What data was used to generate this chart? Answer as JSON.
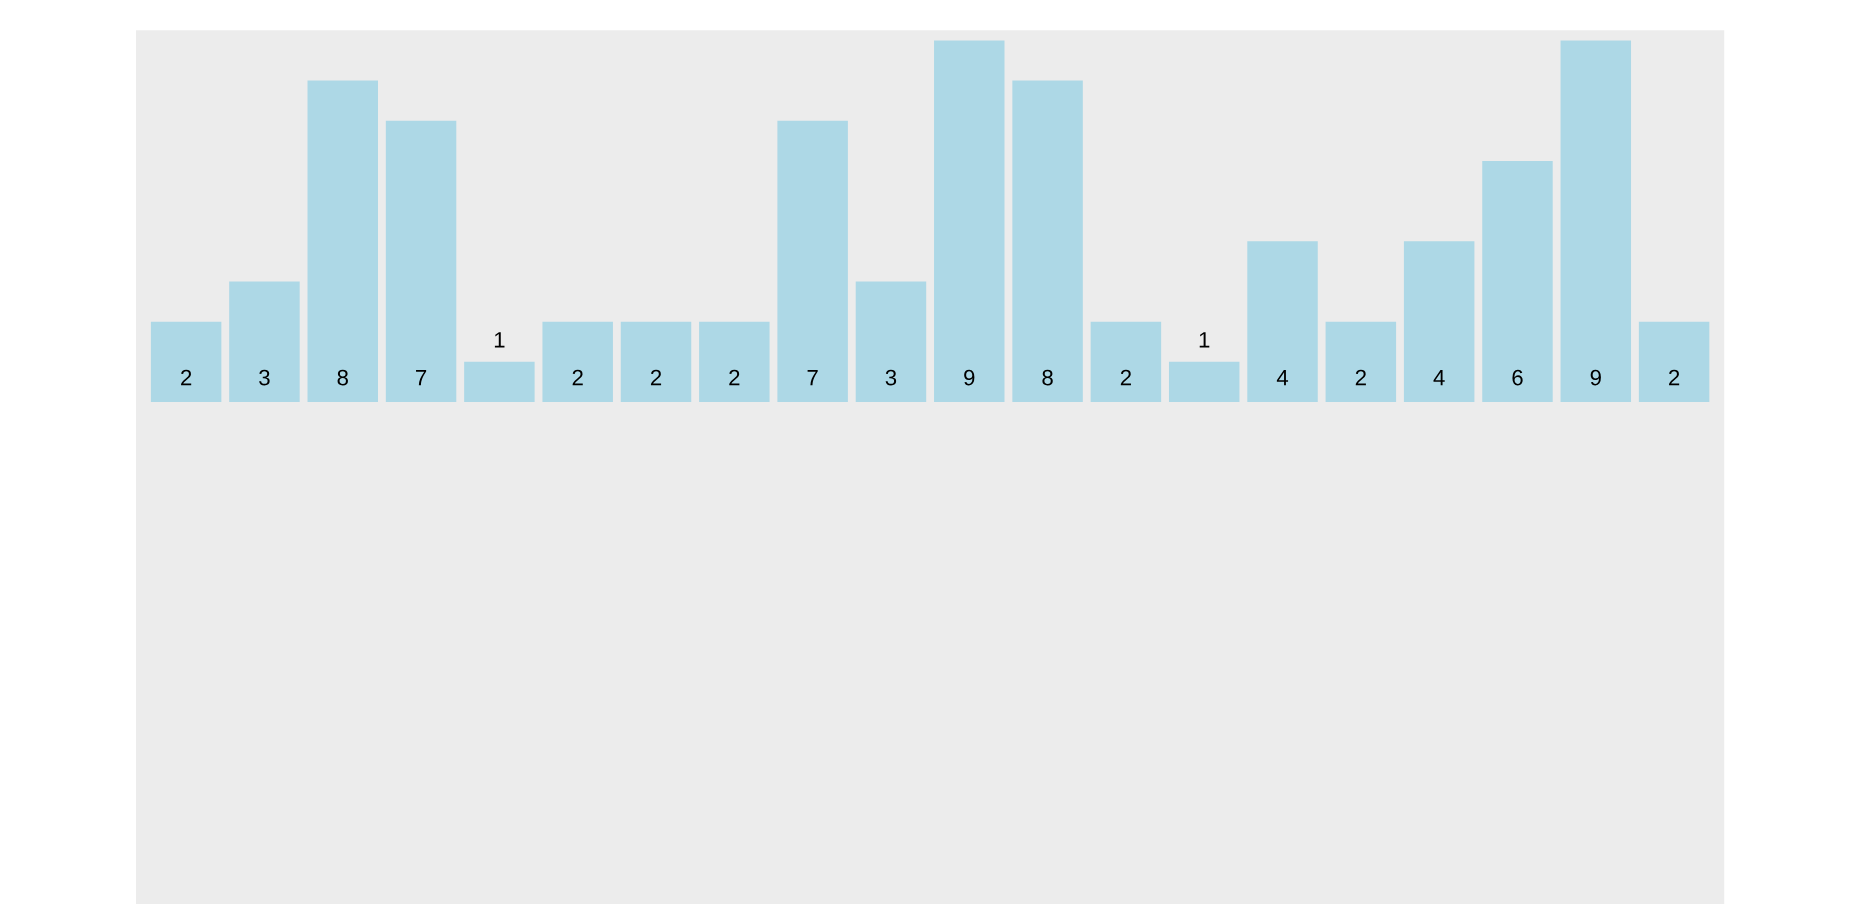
{
  "chart_data": {
    "type": "bar",
    "categories": [
      null,
      null,
      null,
      null,
      null,
      null,
      null,
      null,
      null,
      null,
      null,
      null,
      null,
      null,
      null,
      null,
      null,
      null,
      null,
      null
    ],
    "values": [
      2,
      3,
      8,
      7,
      1,
      2,
      2,
      2,
      7,
      3,
      9,
      8,
      2,
      1,
      4,
      2,
      4,
      6,
      9,
      2
    ],
    "color": "#add8e6",
    "data_labels": true,
    "grid": false,
    "legend": false
  }
}
